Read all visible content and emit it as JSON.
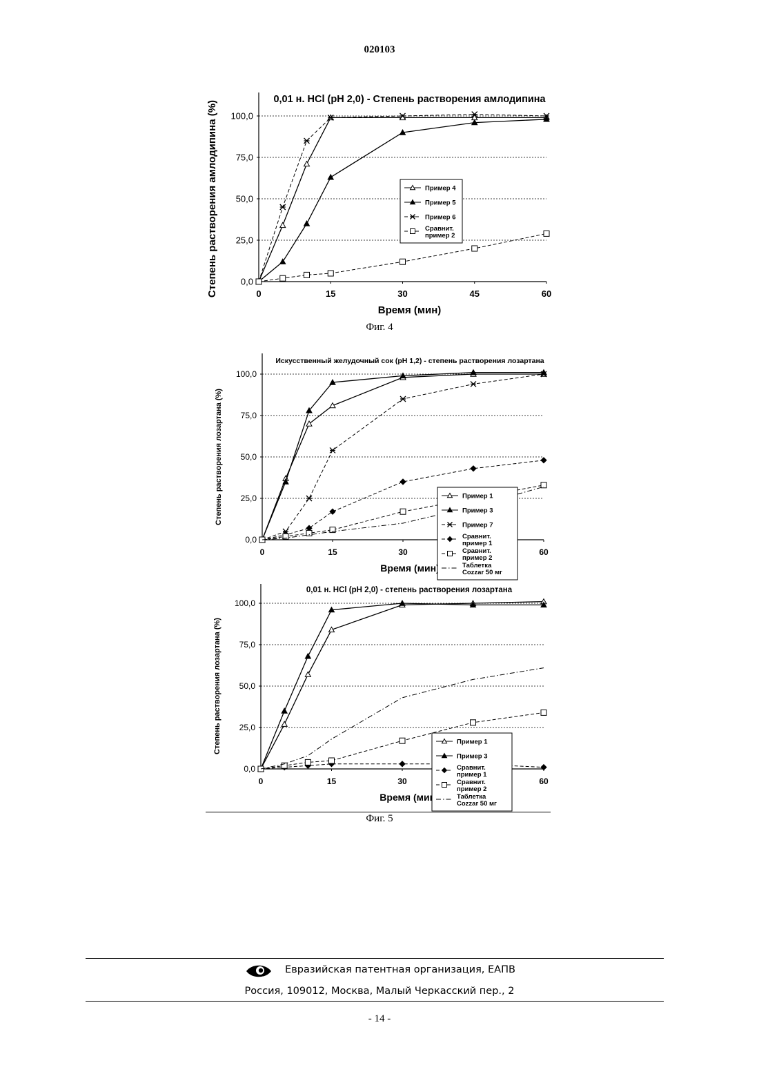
{
  "header": {
    "doc_number": "020103"
  },
  "figures": {
    "fig4_caption": "Фиг. 4",
    "fig5_caption": "Фиг. 5"
  },
  "footer": {
    "org": "Евразийская патентная организация, ЕАПВ",
    "address": "Россия, 109012, Москва, Малый Черкасский пер., 2",
    "page": "- 14 -"
  },
  "chart_data": [
    {
      "type": "line",
      "title": "0,01 н. HCl (pH 2,0) - Степень растворения амлодипина",
      "xlabel": "Время (мин)",
      "ylabel": "Степень растворения амлодипина (%)",
      "x_ticks": [
        "0",
        "15",
        "30",
        "45",
        "60"
      ],
      "y_ticks": [
        "0,0",
        "25,0",
        "50,0",
        "75,0",
        "100,0"
      ],
      "xlim": [
        0,
        60
      ],
      "ylim": [
        0,
        100
      ],
      "grid": "horizontal-dotted",
      "legend_position": "center-right",
      "series": [
        {
          "name": "Пример 4",
          "marker": "triangle-open",
          "line": "solid",
          "x": [
            0,
            5,
            10,
            15,
            30,
            45,
            60
          ],
          "y": [
            0,
            34,
            71,
            99,
            99,
            99,
            99
          ]
        },
        {
          "name": "Пример 5",
          "marker": "triangle-filled",
          "line": "solid",
          "x": [
            0,
            5,
            10,
            15,
            30,
            45,
            60
          ],
          "y": [
            0,
            12,
            35,
            63,
            90,
            96,
            98
          ]
        },
        {
          "name": "Пример 6",
          "marker": "star",
          "line": "dashed",
          "x": [
            0,
            5,
            10,
            15,
            30,
            45,
            60
          ],
          "y": [
            0,
            45,
            85,
            99,
            100,
            101,
            100
          ]
        },
        {
          "name": "Сравнит. пример 2",
          "marker": "square-open",
          "line": "dashed",
          "x": [
            0,
            5,
            10,
            15,
            30,
            45,
            60
          ],
          "y": [
            0,
            2,
            4,
            5,
            12,
            20,
            29
          ]
        }
      ]
    },
    {
      "type": "line",
      "title": "Искусственный желудочный сок (pH 1,2) - степень растворения лозартана",
      "xlabel": "Время (мин)",
      "ylabel": "Степень растворения лозартана (%)",
      "x_ticks": [
        "0",
        "15",
        "30",
        "60"
      ],
      "y_ticks": [
        "0,0",
        "25,0",
        "50,0",
        "75,0",
        "100,0"
      ],
      "xlim": [
        0,
        60
      ],
      "ylim": [
        0,
        100
      ],
      "grid": "horizontal-dotted",
      "legend_position": "bottom-right",
      "series": [
        {
          "name": "Пример 1",
          "marker": "triangle-open",
          "line": "solid",
          "x": [
            0,
            5,
            10,
            15,
            30,
            45,
            60
          ],
          "y": [
            0,
            37,
            70,
            81,
            98,
            100,
            100
          ]
        },
        {
          "name": "Пример 3",
          "marker": "triangle-filled",
          "line": "solid",
          "x": [
            0,
            5,
            10,
            15,
            30,
            45,
            60
          ],
          "y": [
            0,
            35,
            78,
            95,
            99,
            101,
            101
          ]
        },
        {
          "name": "Пример 7",
          "marker": "star",
          "line": "dashed",
          "x": [
            0,
            5,
            10,
            15,
            30,
            45,
            60
          ],
          "y": [
            0,
            5,
            25,
            54,
            85,
            94,
            100
          ]
        },
        {
          "name": "Сравнит. пример 1",
          "marker": "diamond",
          "line": "dashed",
          "x": [
            0,
            5,
            10,
            15,
            30,
            45,
            60
          ],
          "y": [
            0,
            3,
            7,
            17,
            35,
            43,
            48
          ]
        },
        {
          "name": "Сравнит. пример 2",
          "marker": "square-open",
          "line": "dashed",
          "x": [
            0,
            5,
            10,
            15,
            30,
            45,
            60
          ],
          "y": [
            0,
            2,
            4,
            6,
            17,
            25,
            33
          ]
        },
        {
          "name": "Таблетка Cozzar 50 мг",
          "marker": "none",
          "line": "dash-dot",
          "x": [
            0,
            5,
            10,
            15,
            30,
            45,
            60
          ],
          "y": [
            0,
            1,
            3,
            5,
            10,
            20,
            32
          ]
        }
      ]
    },
    {
      "type": "line",
      "title": "0,01 н. HCl (pH 2,0) - степень растворения лозартана",
      "xlabel": "Время (мин)",
      "ylabel": "Степень растворения лозартана (%)",
      "x_ticks": [
        "0",
        "15",
        "30",
        "60"
      ],
      "y_ticks": [
        "0,0",
        "25,0",
        "50,0",
        "75,0",
        "100,0"
      ],
      "xlim": [
        0,
        60
      ],
      "ylim": [
        0,
        100
      ],
      "grid": "horizontal-dotted",
      "legend_position": "bottom-right",
      "series": [
        {
          "name": "Пример 1",
          "marker": "triangle-open",
          "line": "solid",
          "x": [
            0,
            5,
            10,
            15,
            30,
            45,
            60
          ],
          "y": [
            0,
            27,
            57,
            84,
            99,
            100,
            101
          ]
        },
        {
          "name": "Пример 3",
          "marker": "triangle-filled",
          "line": "solid",
          "x": [
            0,
            5,
            10,
            15,
            30,
            45,
            60
          ],
          "y": [
            0,
            35,
            68,
            96,
            100,
            99,
            99
          ]
        },
        {
          "name": "Сравнит. пример 1",
          "marker": "diamond",
          "line": "dashed",
          "x": [
            0,
            5,
            10,
            15,
            30,
            45,
            60
          ],
          "y": [
            0,
            1,
            2,
            3,
            3,
            3,
            1
          ]
        },
        {
          "name": "Сравнит. пример 2",
          "marker": "square-open",
          "line": "dashed",
          "x": [
            0,
            5,
            10,
            15,
            30,
            45,
            60
          ],
          "y": [
            0,
            2,
            4,
            5,
            17,
            28,
            34
          ]
        },
        {
          "name": "Таблетка Cozzar 50 мг",
          "marker": "none",
          "line": "dash-dot",
          "x": [
            0,
            5,
            10,
            15,
            30,
            45,
            60
          ],
          "y": [
            0,
            3,
            8,
            18,
            43,
            54,
            61
          ]
        }
      ]
    }
  ]
}
